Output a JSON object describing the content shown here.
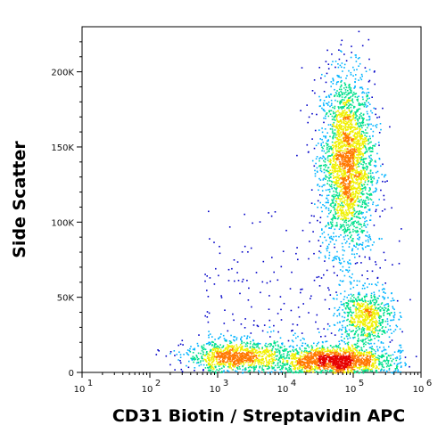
{
  "chart_data": {
    "type": "scatter",
    "title": "",
    "xlabel": "CD31 Biotin / Streptavidin APC",
    "ylabel": "Side Scatter",
    "x_scale": "log",
    "xlim": [
      10,
      1000000
    ],
    "ylim": [
      0,
      230000
    ],
    "x_ticks": [
      {
        "value": 10,
        "base": "10",
        "exp": "1"
      },
      {
        "value": 100,
        "base": "10",
        "exp": "2"
      },
      {
        "value": 1000,
        "base": "10",
        "exp": "3"
      },
      {
        "value": 10000,
        "base": "10",
        "exp": "4"
      },
      {
        "value": 100000,
        "base": "10",
        "exp": "5"
      },
      {
        "value": 1000000,
        "base": "10",
        "exp": "6"
      }
    ],
    "y_ticks": [
      {
        "value": 0,
        "label": "0"
      },
      {
        "value": 50000,
        "label": "50K"
      },
      {
        "value": 100000,
        "label": "100K"
      },
      {
        "value": 150000,
        "label": "150K"
      },
      {
        "value": 200000,
        "label": "200K"
      }
    ],
    "grid": false,
    "legend": "none",
    "color_scale": [
      "#0000c8",
      "#00b4ff",
      "#00e08c",
      "#f0f000",
      "#ff7800",
      "#e60000"
    ],
    "populations": [
      {
        "x_center": 80000,
        "y_center": 140000,
        "x_spread": 0.09,
        "y_spread": 30000,
        "count": 2600
      },
      {
        "x_center": 55000,
        "y_center": 8000,
        "x_spread": 0.18,
        "y_spread": 5000,
        "count": 1500
      },
      {
        "x_center": 2000,
        "y_center": 11000,
        "x_spread": 0.18,
        "y_spread": 5000,
        "count": 1000
      },
      {
        "x_center": 150000,
        "y_center": 38000,
        "x_spread": 0.09,
        "y_spread": 9000,
        "count": 650
      }
    ]
  }
}
